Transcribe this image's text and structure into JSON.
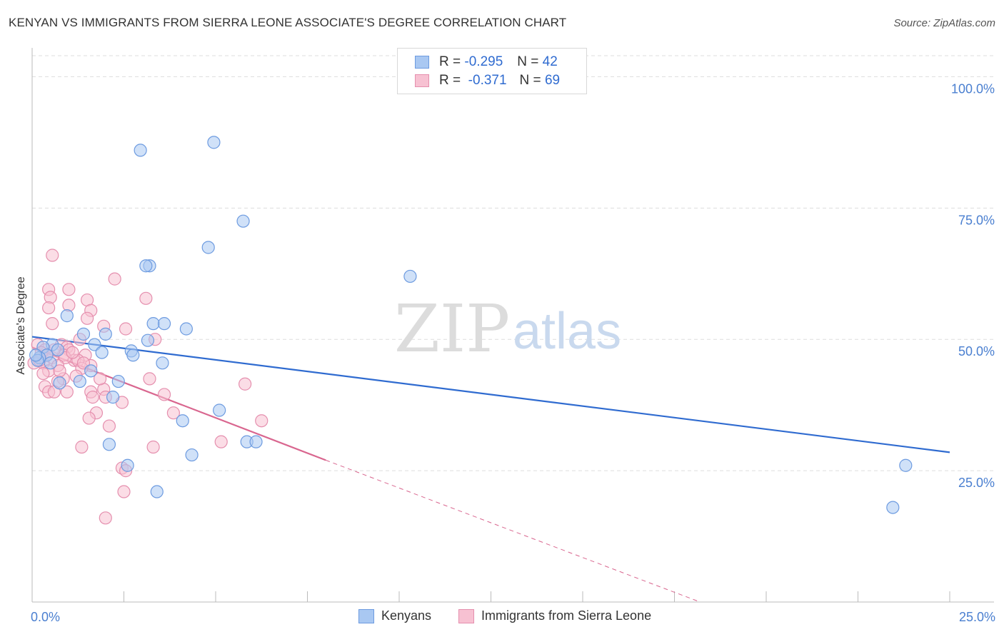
{
  "header": {
    "title": "KENYAN VS IMMIGRANTS FROM SIERRA LEONE ASSOCIATE'S DEGREE CORRELATION CHART",
    "source": "Source: ZipAtlas.com"
  },
  "watermark": {
    "zip": "ZIP",
    "atlas": "atlas"
  },
  "legend": {
    "rows": [
      {
        "r_label": "R =",
        "r_value": "-0.295",
        "n_label": "N =",
        "n_value": "42",
        "color": "#a9c8f2",
        "border": "#6d9be0"
      },
      {
        "r_label": "R =",
        "r_value": "-0.371",
        "n_label": "N =",
        "n_value": "69",
        "color": "#f7c1d2",
        "border": "#e58fae"
      }
    ]
  },
  "bottom_legend": {
    "kenyans": "Kenyans",
    "sierra_leone": "Immigrants from Sierra Leone"
  },
  "chart_data": {
    "type": "scatter",
    "ylabel": "Associate's Degree",
    "xlabel": "",
    "xlim": [
      0,
      25
    ],
    "ylim": [
      0,
      104
    ],
    "x_tick_labels": [
      "0.0%",
      "25.0%"
    ],
    "y_tick_labels": [
      "25.0%",
      "50.0%",
      "75.0%",
      "100.0%"
    ],
    "y_ticks": [
      25,
      50,
      75,
      100
    ],
    "grid": true,
    "colors": {
      "kenyans": "#6d9be0",
      "kenyans_fill": "#a9c8f2",
      "kenyans_line": "#2f6bd0",
      "sierra": "#e58fae",
      "sierra_fill": "#f7c1d2",
      "sierra_line": "#d9668f"
    },
    "series": [
      {
        "name": "Kenyans",
        "points": [
          [
            2.95,
            86.0
          ],
          [
            4.95,
            87.5
          ],
          [
            5.75,
            72.5
          ],
          [
            4.8,
            67.5
          ],
          [
            3.2,
            64.0
          ],
          [
            3.1,
            64.0
          ],
          [
            10.3,
            62.0
          ],
          [
            0.95,
            54.5
          ],
          [
            3.3,
            53.0
          ],
          [
            3.6,
            53.0
          ],
          [
            4.2,
            52.0
          ],
          [
            1.4,
            51.0
          ],
          [
            2.0,
            51.0
          ],
          [
            1.7,
            49.0
          ],
          [
            0.55,
            49.0
          ],
          [
            0.3,
            48.5
          ],
          [
            0.7,
            48.0
          ],
          [
            2.7,
            47.8
          ],
          [
            3.15,
            49.8
          ],
          [
            1.9,
            47.5
          ],
          [
            2.75,
            47.0
          ],
          [
            0.4,
            47.0
          ],
          [
            0.2,
            46.5
          ],
          [
            0.15,
            46.0
          ],
          [
            3.55,
            45.5
          ],
          [
            1.6,
            44.0
          ],
          [
            1.3,
            42.0
          ],
          [
            2.35,
            42.0
          ],
          [
            0.75,
            41.7
          ],
          [
            2.2,
            39.0
          ],
          [
            5.1,
            36.5
          ],
          [
            4.1,
            34.5
          ],
          [
            5.85,
            30.5
          ],
          [
            6.1,
            30.5
          ],
          [
            2.1,
            30.0
          ],
          [
            4.35,
            28.0
          ],
          [
            2.6,
            26.0
          ],
          [
            3.4,
            21.0
          ],
          [
            23.8,
            26.0
          ],
          [
            23.45,
            18.0
          ],
          [
            0.1,
            47.0
          ],
          [
            0.5,
            45.5
          ]
        ]
      },
      {
        "name": "Immigrants from Sierra Leone",
        "points": [
          [
            0.55,
            66.0
          ],
          [
            2.25,
            61.5
          ],
          [
            0.45,
            59.5
          ],
          [
            1.0,
            59.5
          ],
          [
            0.5,
            58.0
          ],
          [
            3.1,
            57.8
          ],
          [
            1.5,
            57.5
          ],
          [
            0.45,
            56.0
          ],
          [
            1.0,
            56.5
          ],
          [
            1.6,
            55.5
          ],
          [
            1.5,
            54.0
          ],
          [
            0.55,
            53.0
          ],
          [
            1.95,
            52.5
          ],
          [
            2.55,
            52.0
          ],
          [
            1.3,
            50.0
          ],
          [
            3.35,
            50.0
          ],
          [
            0.15,
            49.0
          ],
          [
            0.8,
            49.0
          ],
          [
            0.95,
            48.5
          ],
          [
            0.35,
            48.0
          ],
          [
            1.0,
            48.0
          ],
          [
            0.25,
            47.5
          ],
          [
            1.45,
            47.0
          ],
          [
            0.85,
            47.0
          ],
          [
            0.55,
            46.5
          ],
          [
            1.15,
            46.0
          ],
          [
            0.9,
            46.5
          ],
          [
            1.25,
            46.0
          ],
          [
            0.3,
            45.5
          ],
          [
            0.05,
            45.5
          ],
          [
            0.7,
            45.0
          ],
          [
            1.6,
            45.0
          ],
          [
            1.35,
            44.5
          ],
          [
            0.45,
            44.0
          ],
          [
            0.3,
            43.5
          ],
          [
            1.2,
            43.0
          ],
          [
            0.85,
            42.5
          ],
          [
            3.2,
            42.5
          ],
          [
            0.7,
            42.0
          ],
          [
            5.8,
            41.5
          ],
          [
            0.35,
            41.0
          ],
          [
            1.95,
            40.5
          ],
          [
            1.6,
            40.0
          ],
          [
            0.45,
            40.0
          ],
          [
            0.6,
            40.0
          ],
          [
            0.95,
            40.0
          ],
          [
            3.6,
            39.5
          ],
          [
            2.0,
            39.0
          ],
          [
            1.65,
            39.0
          ],
          [
            2.45,
            38.0
          ],
          [
            1.75,
            36.0
          ],
          [
            3.85,
            36.0
          ],
          [
            1.55,
            35.0
          ],
          [
            6.25,
            34.5
          ],
          [
            2.1,
            33.5
          ],
          [
            5.15,
            30.5
          ],
          [
            1.35,
            29.5
          ],
          [
            3.3,
            29.5
          ],
          [
            2.45,
            25.5
          ],
          [
            2.55,
            25.0
          ],
          [
            2.5,
            21.0
          ],
          [
            2.0,
            16.0
          ],
          [
            0.6,
            48.0
          ],
          [
            1.1,
            47.5
          ],
          [
            0.2,
            46.0
          ],
          [
            0.75,
            44.0
          ],
          [
            1.85,
            42.5
          ],
          [
            0.4,
            47.0
          ],
          [
            1.4,
            45.5
          ]
        ]
      }
    ],
    "trendlines": [
      {
        "series": "Kenyans",
        "x": [
          0,
          25
        ],
        "y": [
          50.5,
          28.5
        ],
        "style": "solid"
      },
      {
        "series": "Immigrants from Sierra Leone",
        "x": [
          0,
          8.0
        ],
        "y": [
          48.5,
          27.0
        ],
        "style": "solid"
      },
      {
        "series": "Immigrants from Sierra Leone",
        "x": [
          8.0,
          18.2
        ],
        "y": [
          27.0,
          0
        ],
        "style": "dashed"
      }
    ]
  }
}
